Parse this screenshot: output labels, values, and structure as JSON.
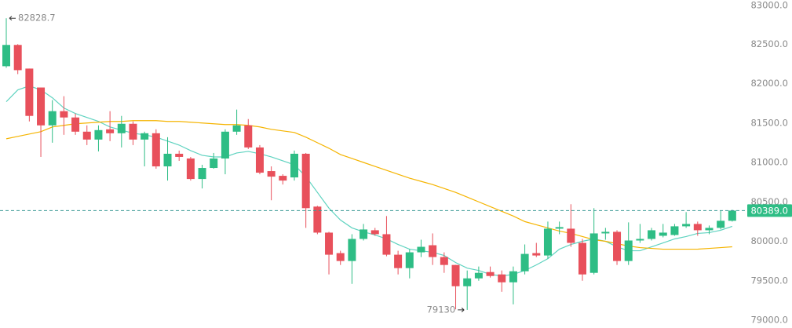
{
  "chart_data": {
    "type": "candlestick",
    "up_color": "#2ebd85",
    "down_color": "#e8505b",
    "ylim": [
      79000,
      83000
    ],
    "yticks": [
      {
        "value": 79000,
        "label": "79000.0"
      },
      {
        "value": 79500,
        "label": "79500.0"
      },
      {
        "value": 80000,
        "label": "80000.0"
      },
      {
        "value": 80500,
        "label": "80500.0"
      },
      {
        "value": 81000,
        "label": "81000.0"
      },
      {
        "value": 81500,
        "label": "81500.0"
      },
      {
        "value": 82000,
        "label": "82000.0"
      },
      {
        "value": 82500,
        "label": "82500.0"
      },
      {
        "value": 83000,
        "label": "83000.0"
      }
    ],
    "grid": false,
    "open": [
      82220,
      82490,
      82190,
      81950,
      81470,
      81650,
      81570,
      81390,
      81290,
      81420,
      81370,
      81490,
      81290,
      81370,
      80950,
      81110,
      81050,
      80790,
      80930,
      81050,
      81390,
      81470,
      81190,
      80890,
      80830,
      80810,
      81110,
      80440,
      80110,
      79850,
      79750,
      80030,
      80140,
      80090,
      79830,
      79660,
      79860,
      79950,
      79800,
      79700,
      79430,
      79530,
      79610,
      79580,
      79480,
      79620,
      79850,
      79820,
      80160,
      80160,
      79980,
      79600,
      80100,
      80120,
      79750,
      80010,
      80030,
      80070,
      80080,
      80190,
      80220,
      80140,
      80170,
      80260
    ],
    "high": [
      82828.7,
      82500,
      82190,
      81950,
      81790,
      81840,
      81620,
      81470,
      81470,
      81650,
      81590,
      81520,
      81390,
      81420,
      81320,
      81150,
      81070,
      80970,
      81120,
      81420,
      81670,
      81550,
      81220,
      80950,
      80850,
      81150,
      81120,
      80450,
      80120,
      79880,
      80090,
      80220,
      80170,
      80320,
      79880,
      79900,
      80020,
      80100,
      79860,
      79700,
      79630,
      79680,
      79680,
      79630,
      79680,
      79960,
      79980,
      80250,
      80250,
      80470,
      80030,
      80420,
      80170,
      80140,
      80240,
      80220,
      80170,
      80220,
      80220,
      80370,
      80250,
      80200,
      80390,
      80400
    ],
    "low": [
      82200,
      82120,
      81520,
      81070,
      81250,
      81350,
      81350,
      81220,
      81140,
      81270,
      81190,
      81220,
      80950,
      80920,
      80770,
      81020,
      80770,
      80670,
      80920,
      80850,
      81350,
      81170,
      80850,
      80520,
      80720,
      80770,
      80170,
      80090,
      79580,
      79700,
      79460,
      80010,
      80070,
      79810,
      79580,
      79530,
      79800,
      79700,
      79600,
      79137.4,
      79130,
      79500,
      79540,
      79360,
      79200,
      79580,
      79800,
      79780,
      80090,
      79930,
      79500,
      79580,
      80020,
      79700,
      79700,
      79980,
      80010,
      80050,
      80070,
      80170,
      80070,
      80090,
      80150,
      80250
    ],
    "close": [
      82490,
      82170,
      81590,
      81470,
      81650,
      81570,
      81390,
      81290,
      81410,
      81370,
      81490,
      81290,
      81370,
      80950,
      81110,
      81070,
      80790,
      80930,
      81050,
      81390,
      81470,
      81190,
      80870,
      80820,
      80770,
      81110,
      80420,
      80110,
      79830,
      79750,
      80030,
      80150,
      80090,
      79830,
      79660,
      79860,
      79930,
      79800,
      79700,
      79430,
      79530,
      79600,
      79560,
      79480,
      79620,
      79840,
      79820,
      80160,
      80180,
      79980,
      79580,
      80100,
      80120,
      79750,
      80010,
      80030,
      80140,
      80110,
      80190,
      80220,
      80140,
      80170,
      80260,
      80389
    ],
    "moving_averages": [
      {
        "color": "#5fd3c0",
        "values": [
          81770,
          81920,
          81970,
          81920,
          81820,
          81690,
          81620,
          81570,
          81520,
          81450,
          81410,
          81370,
          81350,
          81320,
          81270,
          81220,
          81150,
          81090,
          81070,
          81070,
          81120,
          81140,
          81110,
          81070,
          81020,
          80970,
          80820,
          80620,
          80420,
          80270,
          80170,
          80120,
          80080,
          80030,
          79960,
          79900,
          79880,
          79860,
          79820,
          79730,
          79660,
          79630,
          79580,
          79560,
          79580,
          79630,
          79700,
          79780,
          79900,
          79960,
          80000,
          80030,
          80000,
          79930,
          79880,
          79880,
          79930,
          79980,
          80030,
          80060,
          80100,
          80110,
          80140,
          80190
        ]
      },
      {
        "color": "#f5b400",
        "values": [
          81300,
          81330,
          81360,
          81390,
          81450,
          81470,
          81490,
          81500,
          81510,
          81520,
          81520,
          81530,
          81530,
          81530,
          81520,
          81520,
          81510,
          81500,
          81490,
          81480,
          81480,
          81470,
          81450,
          81420,
          81400,
          81380,
          81320,
          81250,
          81180,
          81100,
          81050,
          81000,
          80950,
          80900,
          80850,
          80800,
          80760,
          80720,
          80670,
          80620,
          80560,
          80500,
          80440,
          80380,
          80320,
          80250,
          80210,
          80170,
          80130,
          80100,
          80060,
          80020,
          80000,
          79970,
          79940,
          79920,
          79910,
          79900,
          79900,
          79900,
          79900,
          79910,
          79920,
          79930
        ]
      }
    ],
    "last_price": {
      "value": 80389,
      "label": "80389.0"
    },
    "last_price_color": "#2ebd85"
  }
}
